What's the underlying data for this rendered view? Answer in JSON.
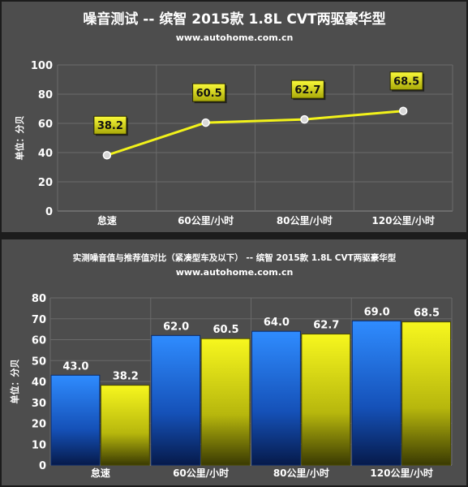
{
  "colors": {
    "background": "#1c1c1c",
    "panel": "#4d4d4d",
    "title_text": "#ffffff",
    "axis_text": "#ffffff",
    "grid": "#6a6a6a",
    "line": "#f2f21a",
    "label_box": "#f2f21a",
    "bar_blue": "#1e7cf5",
    "bar_yellow": "#f2f21a"
  },
  "chart_data": [
    {
      "type": "line",
      "title": "噪音测试 -- 缤智 2015款 1.8L CVT两驱豪华型",
      "subtitle": "www.autohome.com.cn",
      "xlabel": "",
      "ylabel": "单位：分贝",
      "categories": [
        "怠速",
        "60公里/小时",
        "80公里/小时",
        "120公里/小时"
      ],
      "series": [
        {
          "name": "",
          "values": [
            38.2,
            60.5,
            62.7,
            68.5
          ]
        }
      ],
      "data_labels": [
        "38.2",
        "60.5",
        "62.7",
        "68.5"
      ],
      "ylim": [
        0,
        100
      ],
      "yticks": [
        "0",
        "20",
        "40",
        "60",
        "80",
        "100"
      ],
      "grid": true,
      "legend": "none"
    },
    {
      "type": "bar",
      "title": "实测噪音值与推荐值对比（紧凑型车及以下） -- 缤智 2015款 1.8L CVT两驱豪华型",
      "subtitle": "www.autohome.com.cn",
      "xlabel": "",
      "ylabel": "单位：分贝",
      "categories": [
        "怠速",
        "60公里/小时",
        "80公里/小时",
        "120公里/小时"
      ],
      "series": [
        {
          "name": "",
          "values": [
            43.0,
            62.0,
            64.0,
            69.0
          ],
          "labels": [
            "43.0",
            "62.0",
            "64.0",
            "69.0"
          ]
        },
        {
          "name": "",
          "values": [
            38.2,
            60.5,
            62.7,
            68.5
          ],
          "labels": [
            "38.2",
            "60.5",
            "62.7",
            "68.5"
          ]
        }
      ],
      "ylim": [
        0,
        80
      ],
      "yticks": [
        "0",
        "10",
        "20",
        "30",
        "40",
        "50",
        "60",
        "70",
        "80"
      ],
      "grid": true,
      "legend": "none"
    }
  ]
}
